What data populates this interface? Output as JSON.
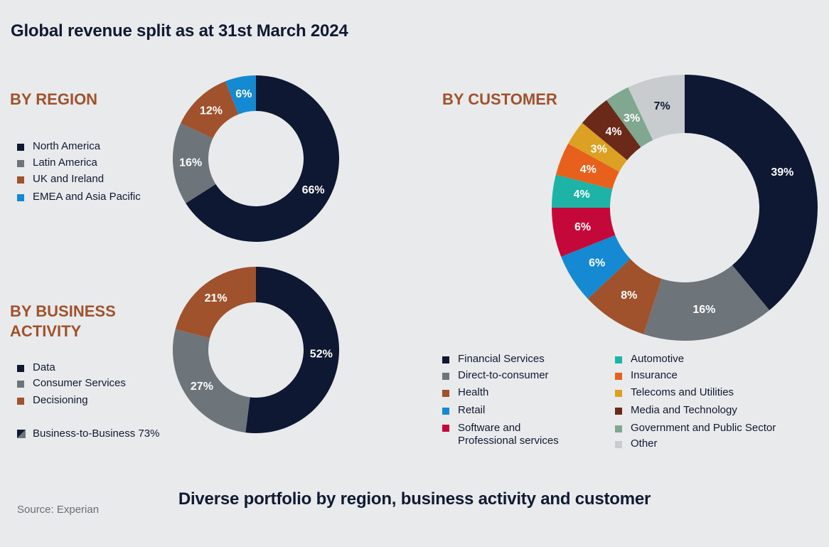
{
  "page": {
    "title": "Global revenue split as at 31st March 2024",
    "footer_title": "Diverse portfolio by region, business activity and customer",
    "source": "Source: Experian"
  },
  "chart_data": [
    {
      "type": "pie",
      "id": "region",
      "title": "BY REGION",
      "series": [
        {
          "name": "North America",
          "value": 66,
          "label": "66%",
          "color": "#0e1832"
        },
        {
          "name": "Latin America",
          "value": 16,
          "label": "16%",
          "color": "#6d757b"
        },
        {
          "name": "UK and Ireland",
          "value": 12,
          "label": "12%",
          "color": "#a0522d"
        },
        {
          "name": "EMEA and Asia Pacific",
          "value": 6,
          "label": "6%",
          "color": "#1589d1"
        }
      ]
    },
    {
      "type": "pie",
      "id": "business",
      "title_line1": "BY BUSINESS",
      "title_line2": "ACTIVITY",
      "series": [
        {
          "name": "Data",
          "value": 52,
          "label": "52%",
          "color": "#0e1832"
        },
        {
          "name": "Consumer Services",
          "value": 27,
          "label": "27%",
          "color": "#6d757b"
        },
        {
          "name": "Decisioning",
          "value": 21,
          "label": "21%",
          "color": "#a0522d"
        }
      ],
      "note": "Business-to-Business 73%"
    },
    {
      "type": "pie",
      "id": "customer",
      "title": "BY CUSTOMER",
      "series": [
        {
          "name": "Financial Services",
          "value": 39,
          "label": "39%",
          "color": "#0e1832"
        },
        {
          "name": "Direct-to-consumer",
          "value": 16,
          "label": "16%",
          "color": "#6d757b"
        },
        {
          "name": "Health",
          "value": 8,
          "label": "8%",
          "color": "#a0522d"
        },
        {
          "name": "Retail",
          "value": 6,
          "label": "6%",
          "color": "#1589d1"
        },
        {
          "name": "Software and Professional services",
          "value": 6,
          "label": "6%",
          "color": "#c4093a"
        },
        {
          "name": "Automotive",
          "value": 4,
          "label": "4%",
          "color": "#1db3a6"
        },
        {
          "name": "Insurance",
          "value": 4,
          "label": "4%",
          "color": "#e8611c"
        },
        {
          "name": "Telecoms and Utilities",
          "value": 3,
          "label": "3%",
          "color": "#dca123"
        },
        {
          "name": "Media and Technology",
          "value": 4,
          "label": "4%",
          "color": "#6b2a19"
        },
        {
          "name": "Government and Public Sector",
          "value": 3,
          "label": "3%",
          "color": "#80a890"
        },
        {
          "name": "Other",
          "value": 7,
          "label": "7%",
          "color": "#c9cccf"
        }
      ],
      "legend_left": [
        {
          "line1": "Financial Services",
          "color": "#0e1832"
        },
        {
          "line1": "Direct-to-consumer",
          "color": "#6d757b"
        },
        {
          "line1": "Health",
          "color": "#a0522d"
        },
        {
          "line1": "Retail",
          "color": "#1589d1"
        },
        {
          "line1": "Software and",
          "line2": "Professional services",
          "color": "#c4093a"
        }
      ],
      "legend_right": [
        {
          "line1": "Automotive",
          "color": "#1db3a6"
        },
        {
          "line1": "Insurance",
          "color": "#e8611c"
        },
        {
          "line1": "Telecoms and Utilities",
          "color": "#dca123"
        },
        {
          "line1": "Media and Technology",
          "color": "#6b2a19"
        },
        {
          "line1": "Government and Public Sector",
          "color": "#80a890"
        },
        {
          "line1": "Other",
          "color": "#c9cccf"
        }
      ]
    }
  ]
}
